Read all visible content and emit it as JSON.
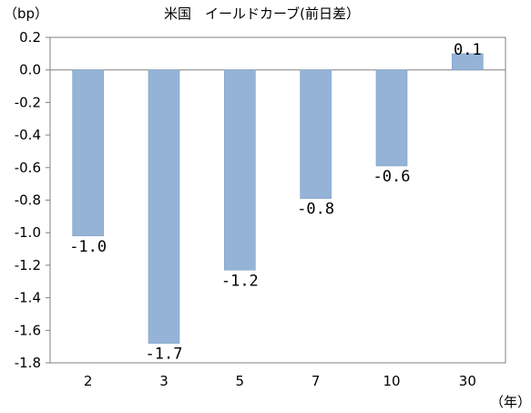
{
  "chart_data": {
    "type": "bar",
    "title": "米国　イールドカーブ(前日差）",
    "ylabel": "（bp）",
    "xlabel": "（年）",
    "categories": [
      "2",
      "3",
      "5",
      "7",
      "10",
      "30"
    ],
    "values": [
      -1.02,
      -1.68,
      -1.23,
      -0.79,
      -0.59,
      0.1
    ],
    "data_labels": [
      "-1.0",
      "-1.7",
      "-1.2",
      "-0.8",
      "-0.6",
      "0.1"
    ],
    "ylim": [
      -1.8,
      0.2
    ],
    "yticks": [
      "0.2",
      "0.0",
      "-0.2",
      "-0.4",
      "-0.6",
      "-0.8",
      "-1.0",
      "-1.2",
      "-1.4",
      "-1.6",
      "-1.8"
    ],
    "grid": false,
    "colors": {
      "bar": "#95b3d7",
      "bar_edge": "#7f9fc6",
      "axis": "#808080"
    }
  }
}
